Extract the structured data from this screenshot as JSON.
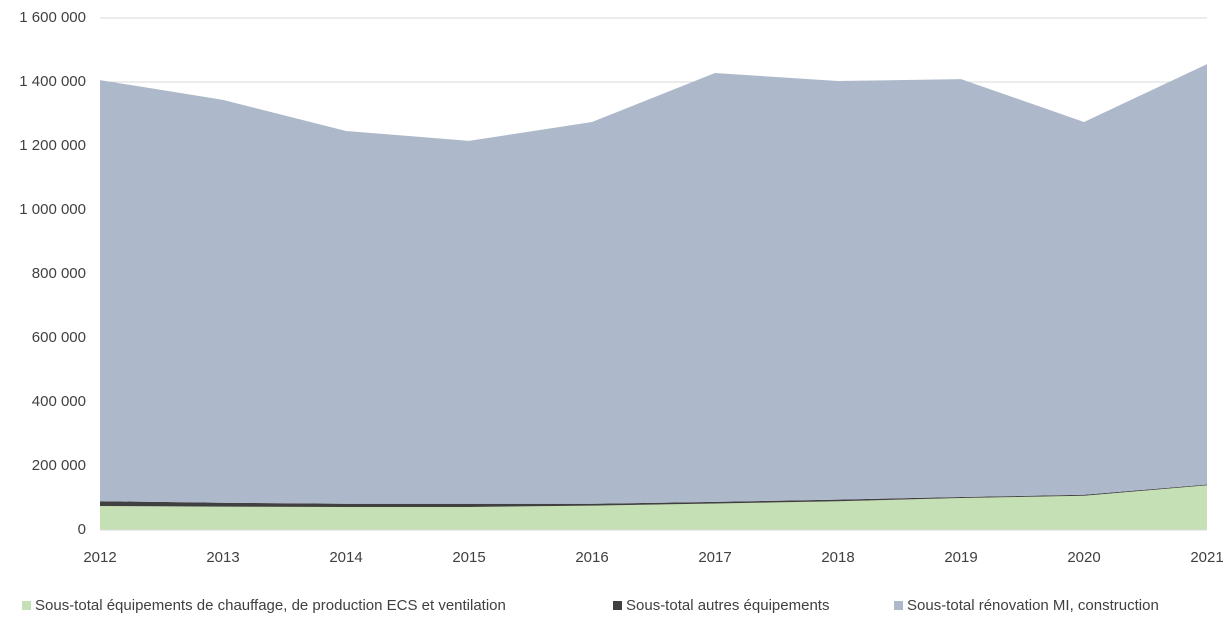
{
  "chart_data": {
    "type": "area",
    "stacked": true,
    "categories": [
      "2012",
      "2013",
      "2014",
      "2015",
      "2016",
      "2017",
      "2018",
      "2019",
      "2020",
      "2021"
    ],
    "series": [
      {
        "name": "Sous-total équipements de chauffage, de production ECS et ventilation",
        "color": "#c5e0b4",
        "values": [
          75000,
          73000,
          72000,
          72000,
          76000,
          83000,
          90000,
          100000,
          107000,
          140000
        ]
      },
      {
        "name": "Sous-total autres équipements",
        "color": "#404040",
        "values": [
          15000,
          12000,
          10000,
          10000,
          6000,
          5000,
          5000,
          3000,
          3000,
          2000
        ]
      },
      {
        "name": "Sous-total rénovation MI, construction",
        "color": "#adb9ca",
        "values": [
          1316000,
          1259000,
          1165000,
          1134000,
          1193000,
          1340000,
          1308000,
          1306000,
          1165000,
          1314000
        ]
      }
    ],
    "ylim": [
      0,
      1600000
    ],
    "yticks": [
      0,
      {
        "value": 200000,
        "label": "200 000"
      },
      {
        "value": 400000,
        "label": "400 000"
      },
      {
        "value": 600000,
        "label": "600 000"
      },
      {
        "value": 800000,
        "label": "800 000"
      },
      {
        "value": 1000000,
        "label": "1 000 000"
      },
      {
        "value": 1200000,
        "label": "1 200 000"
      },
      {
        "value": 1400000,
        "label": "1 400 000"
      },
      {
        "value": 1600000,
        "label": "1 600 000"
      }
    ],
    "grid": true,
    "legend": "bottom"
  }
}
